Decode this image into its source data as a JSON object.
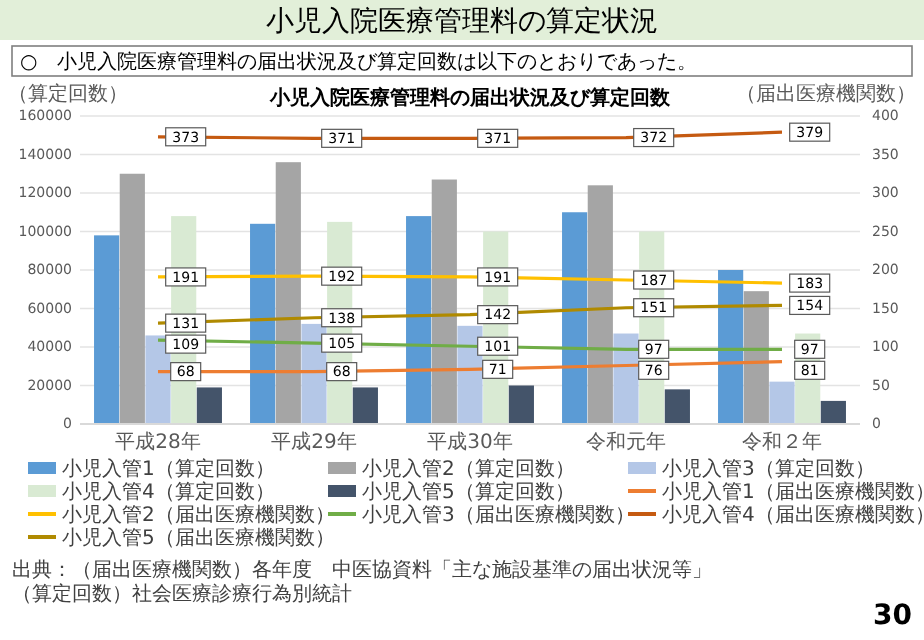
{
  "chart_data": {
    "type": "bar",
    "title": "小児入院医療管理料の算定状況",
    "subtitle": "○　小児入院医療管理料の届出状況及び算定回数は以下のとおりであった。",
    "ylabel": "（算定回数）",
    "y2label": "（届出医療機関数）",
    "annotations": [
      "小児入院医療管理料の届出状況及び算定回数",
      "出典：（届出医療機関数）各年度　中医協資料「主な施設基準の届出状況等」",
      "（算定回数）社会医療診療行為別統計",
      "30"
    ],
    "categories": [
      "平成28年",
      "平成29年",
      "平成30年",
      "令和元年",
      "令和２年"
    ],
    "ylim": [
      0,
      160000
    ],
    "yticks": [
      0,
      20000,
      40000,
      60000,
      80000,
      100000,
      120000,
      140000,
      160000
    ],
    "y2lim": [
      0,
      400
    ],
    "y2ticks": [
      0,
      50,
      100,
      150,
      200,
      250,
      300,
      350,
      400
    ],
    "grid": "y",
    "legend": "bottom",
    "series": [
      {
        "name": "小児入管1（算定回数）",
        "color": "#5b9bd5",
        "values": [
          98000,
          104000,
          108000,
          110000,
          80000
        ]
      },
      {
        "name": "小児入管2（算定回数）",
        "color": "#a5a5a5",
        "values": [
          130000,
          136000,
          127000,
          124000,
          69000
        ]
      },
      {
        "name": "小児入管3（算定回数）",
        "color": "#b4c7e7",
        "values": [
          46000,
          52000,
          51000,
          47000,
          22000
        ]
      },
      {
        "name": "小児入管4（算定回数）",
        "color": "#d9ead3",
        "values": [
          108000,
          105000,
          100000,
          100000,
          47000
        ]
      },
      {
        "name": "小児入管5（算定回数）",
        "color": "#44546a",
        "values": [
          19000,
          19000,
          20000,
          18000,
          12000
        ]
      },
      {
        "name": "小児入管1（届出医療機関数）",
        "type": "line",
        "axis": "y2",
        "color": "#ed7d31",
        "values": [
          68,
          68,
          71,
          76,
          81
        ],
        "value_labels": [
          "68",
          "68",
          "71",
          "76",
          "81"
        ]
      },
      {
        "name": "小児入管2（届出医療機関数）",
        "type": "line",
        "axis": "y2",
        "color": "#ffc000",
        "values": [
          191,
          192,
          191,
          187,
          183
        ],
        "value_labels": [
          "191",
          "192",
          "191",
          "187",
          "183"
        ]
      },
      {
        "name": "小児入管3（届出医療機関数）",
        "type": "line",
        "axis": "y2",
        "color": "#70ad47",
        "values": [
          109,
          105,
          101,
          97,
          97
        ],
        "value_labels": [
          "109",
          "105",
          "101",
          "97",
          "97"
        ]
      },
      {
        "name": "小児入管4（届出医療機関数）",
        "type": "line",
        "axis": "y2",
        "color": "#c55a11",
        "values": [
          373,
          371,
          371,
          372,
          379
        ],
        "value_labels": [
          "373",
          "371",
          "371",
          "372",
          "379"
        ]
      },
      {
        "name": "小児入管5（届出医療機関数）",
        "type": "line",
        "axis": "y2",
        "color": "#b08a00",
        "values": [
          131,
          138,
          142,
          151,
          154
        ],
        "value_labels": [
          "131",
          "138",
          "142",
          "151",
          "154"
        ]
      }
    ]
  }
}
